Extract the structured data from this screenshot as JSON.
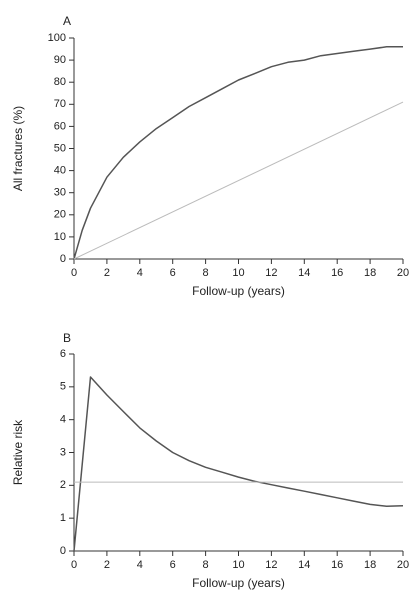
{
  "chart_data": [
    {
      "panel_label": "A",
      "type": "line",
      "xlabel": "Follow-up (years)",
      "ylabel": "All fractures (%)",
      "xlim": [
        0,
        20
      ],
      "ylim": [
        0,
        100
      ],
      "xticks": [
        0,
        2,
        4,
        6,
        8,
        10,
        12,
        14,
        16,
        18,
        20
      ],
      "yticks": [
        0,
        10,
        20,
        30,
        40,
        50,
        60,
        70,
        80,
        90,
        100
      ],
      "grid": false,
      "series": [
        {
          "color": "#555555",
          "x": [
            0,
            0.5,
            1,
            1.5,
            2,
            3,
            4,
            5,
            6,
            7,
            8,
            9,
            10,
            11,
            12,
            13,
            14,
            15,
            16,
            17,
            18,
            19,
            20
          ],
          "y": [
            0,
            13,
            23,
            30,
            37,
            46,
            53,
            59,
            64,
            69,
            73,
            77,
            81,
            84,
            87,
            89,
            90,
            92,
            93,
            94,
            95,
            96,
            96
          ]
        },
        {
          "color": "#bbbbbb",
          "x": [
            0,
            20
          ],
          "y": [
            0,
            71
          ]
        }
      ]
    },
    {
      "panel_label": "B",
      "type": "line",
      "xlabel": "Follow-up (years)",
      "ylabel": "Relative risk",
      "xlim": [
        0,
        20
      ],
      "ylim": [
        0,
        6
      ],
      "xticks": [
        0,
        2,
        4,
        6,
        8,
        10,
        12,
        14,
        16,
        18,
        20
      ],
      "yticks": [
        0,
        1,
        2,
        3,
        4,
        5,
        6
      ],
      "grid": false,
      "series": [
        {
          "color": "#555555",
          "x": [
            0,
            1,
            2,
            3,
            4,
            5,
            6,
            7,
            8,
            9,
            10,
            11,
            12,
            13,
            14,
            15,
            16,
            17,
            18,
            19,
            20
          ],
          "y": [
            0,
            5.3,
            4.75,
            4.25,
            3.75,
            3.35,
            3.0,
            2.75,
            2.55,
            2.4,
            2.25,
            2.12,
            2.02,
            1.92,
            1.82,
            1.72,
            1.62,
            1.52,
            1.42,
            1.36,
            1.38
          ]
        },
        {
          "color": "#bbbbbb",
          "x": [
            0,
            20
          ],
          "y": [
            2.1,
            2.1
          ]
        }
      ]
    }
  ]
}
